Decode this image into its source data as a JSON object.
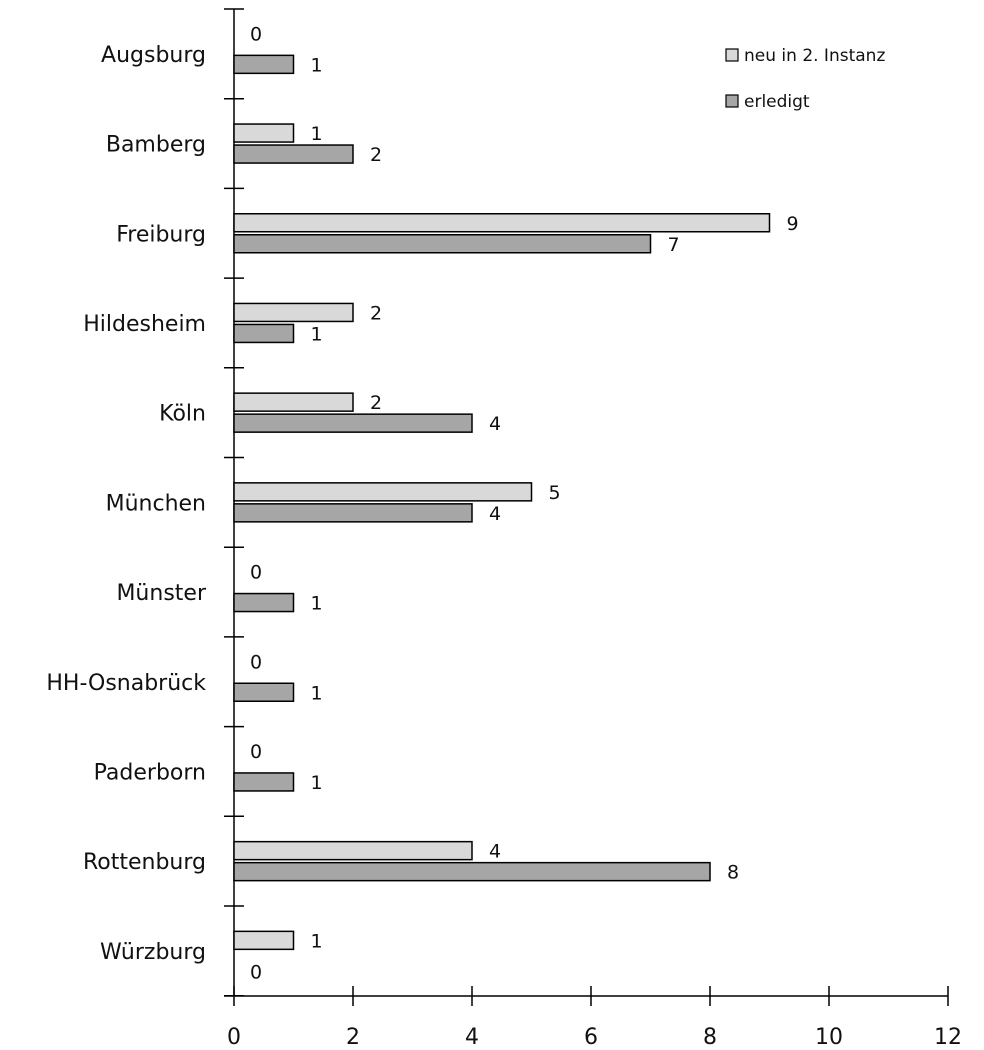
{
  "chart_data": {
    "type": "bar",
    "orientation": "horizontal",
    "categories": [
      "Augsburg",
      "Bamberg",
      "Freiburg",
      "Hildesheim",
      "Köln",
      "München",
      "Münster",
      "HH-Osnabrück",
      "Paderborn",
      "Rottenburg",
      "Würzburg"
    ],
    "series": [
      {
        "name": "neu in 2. Instanz",
        "color": "#d9d9d9",
        "values": [
          0,
          1,
          9,
          2,
          2,
          5,
          0,
          0,
          0,
          4,
          1
        ]
      },
      {
        "name": "erledigt",
        "color": "#a6a6a6",
        "values": [
          1,
          2,
          7,
          1,
          4,
          4,
          1,
          1,
          1,
          8,
          0
        ]
      }
    ],
    "xlim": [
      0,
      12
    ],
    "xticks": [
      0,
      2,
      4,
      6,
      8,
      10,
      12
    ],
    "xlabel": "",
    "ylabel": "",
    "title": "",
    "grid": false,
    "legend_position": "top-right",
    "data_labels": true
  }
}
